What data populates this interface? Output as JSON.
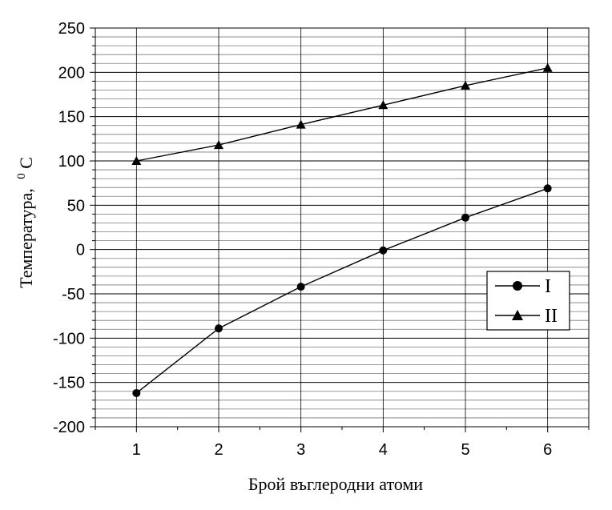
{
  "chart_data": {
    "type": "line",
    "x": [
      1,
      2,
      3,
      4,
      5,
      6
    ],
    "xlim": [
      0.5,
      6.5
    ],
    "ylim": [
      -200,
      250
    ],
    "xticks": [
      1,
      2,
      3,
      4,
      5,
      6
    ],
    "yticks": [
      -200,
      -150,
      -100,
      -50,
      0,
      50,
      100,
      150,
      200,
      250
    ],
    "xlabel": "Брой въглеродни атоми",
    "ylabel": "Температура,",
    "ylabel_unit_sup": "0",
    "ylabel_unit": "C",
    "grid": true,
    "legend_position": "right",
    "series": [
      {
        "name": "I",
        "marker": "circle",
        "values": [
          -162,
          -89,
          -42,
          -1,
          36,
          69
        ]
      },
      {
        "name": "II",
        "marker": "triangle",
        "values": [
          100,
          118,
          141,
          163,
          185,
          205
        ]
      }
    ]
  }
}
